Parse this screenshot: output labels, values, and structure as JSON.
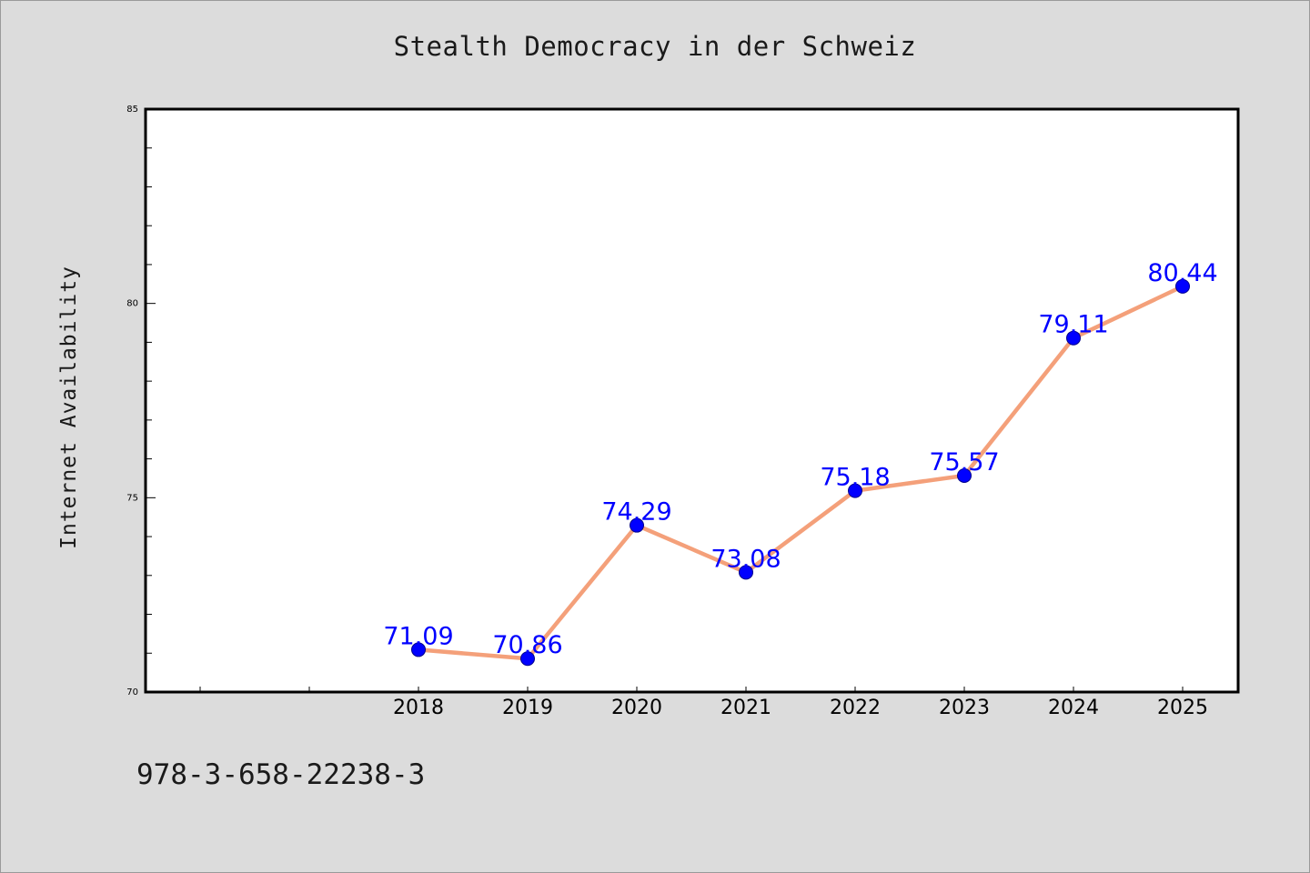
{
  "chart_data": {
    "type": "line",
    "title": "Stealth Democracy in der Schweiz",
    "xlabel": "",
    "ylabel": "Internet Availability",
    "categories": [
      "2018",
      "2019",
      "2020",
      "2021",
      "2022",
      "2023",
      "2024",
      "2025"
    ],
    "series": [
      {
        "values": [
          71.09,
          70.86,
          74.29,
          73.08,
          75.18,
          75.57,
          79.11,
          80.44
        ],
        "data_labels": [
          "71.09",
          "70.86",
          "74.29",
          "73.08",
          "75.18",
          "75.57",
          "79.11",
          "80.44"
        ]
      }
    ],
    "ylim": [
      70,
      85
    ],
    "y_ticks": [
      "70",
      "75",
      "80",
      "85"
    ],
    "grid": false,
    "legend": "none",
    "colors": {
      "line": "#f4a07a",
      "marker": "#0000ff",
      "data_label": "#0000ff",
      "background": "#dcdcdc",
      "plot_background": "#ffffff"
    }
  },
  "footer": {
    "code": "978-3-658-22238-3"
  }
}
